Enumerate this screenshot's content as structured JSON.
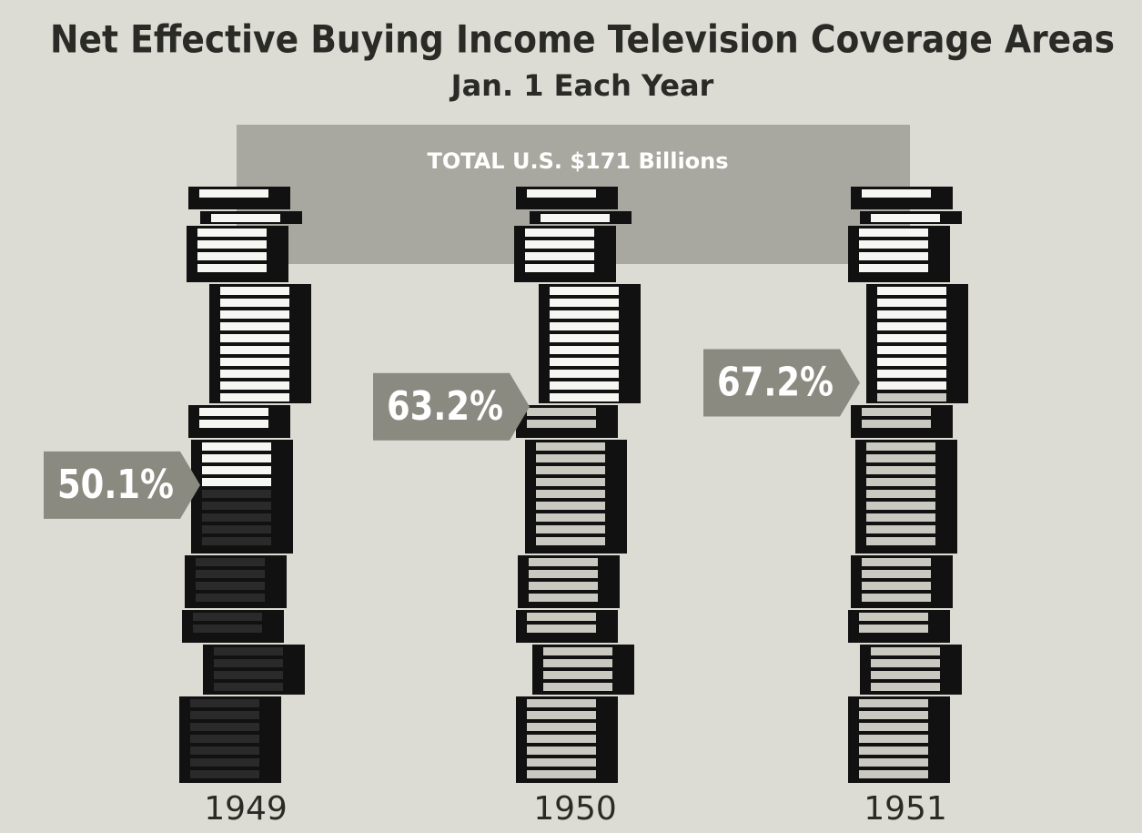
{
  "chart_data": {
    "type": "pictograph",
    "title": "Net Effective Buying Income Television Coverage Areas",
    "subtitle": "Jan. 1 Each Year",
    "annotation": "TOTAL U.S. $171 Billions",
    "categories": [
      "1949",
      "1950",
      "1951"
    ],
    "values": [
      50.1,
      63.2,
      67.2
    ],
    "value_labels": [
      "50.1%",
      "63.2%",
      "67.2%"
    ],
    "ylim": [
      0,
      100
    ]
  }
}
